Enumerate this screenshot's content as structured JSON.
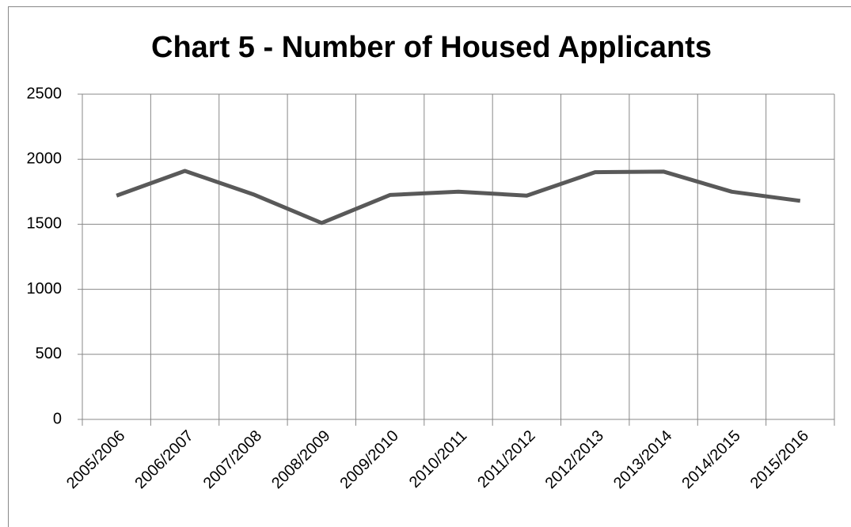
{
  "chart_data": {
    "type": "line",
    "title": "Chart 5 - Number of Housed Applicants",
    "categories": [
      "2005/2006",
      "2006/2007",
      "2007/2008",
      "2008/2009",
      "2009/2010",
      "2010/2011",
      "2011/2012",
      "2012/2013",
      "2013/2014",
      "2014/2015",
      "2015/2016"
    ],
    "series": [
      {
        "name": "Housed Applicants",
        "color": "#595959",
        "values": [
          1720,
          1910,
          1730,
          1510,
          1725,
          1750,
          1720,
          1900,
          1905,
          1750,
          1680
        ]
      }
    ],
    "ylim": [
      0,
      2500
    ],
    "yticks": [
      0,
      500,
      1000,
      1500,
      2000,
      2500
    ],
    "grid": true
  }
}
